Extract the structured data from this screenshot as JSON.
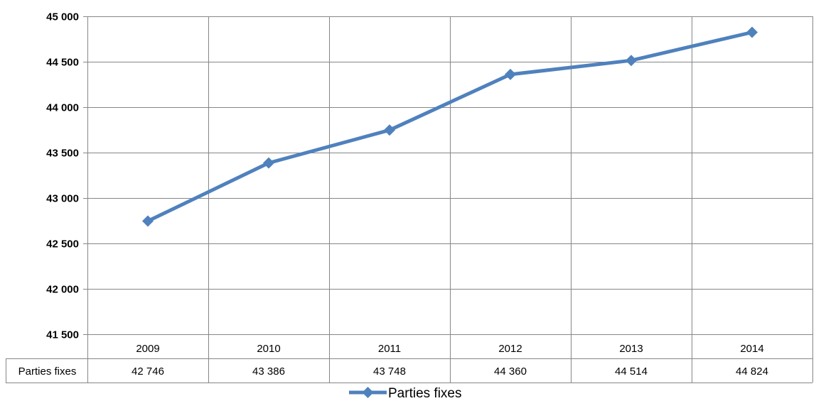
{
  "chart_data": {
    "type": "line",
    "categories": [
      "2009",
      "2010",
      "2011",
      "2012",
      "2013",
      "2014"
    ],
    "series": [
      {
        "name": "Parties fixes",
        "values": [
          42746,
          43386,
          43748,
          44360,
          44514,
          44824
        ],
        "value_labels": [
          "42 746",
          "43 386",
          "43 748",
          "44 360",
          "44 514",
          "44 824"
        ],
        "color": "#4F81BD"
      }
    ],
    "yticks": [
      {
        "value": 41500,
        "label": "41 500"
      },
      {
        "value": 42000,
        "label": "42 000"
      },
      {
        "value": 42500,
        "label": "42 500"
      },
      {
        "value": 43000,
        "label": "43 000"
      },
      {
        "value": 43500,
        "label": "43 500"
      },
      {
        "value": 44000,
        "label": "44 000"
      },
      {
        "value": 44500,
        "label": "44 500"
      },
      {
        "value": 45000,
        "label": "45 000"
      }
    ],
    "ylim": [
      41500,
      45000
    ],
    "grid": true,
    "data_table": true,
    "legend_position": "bottom"
  }
}
